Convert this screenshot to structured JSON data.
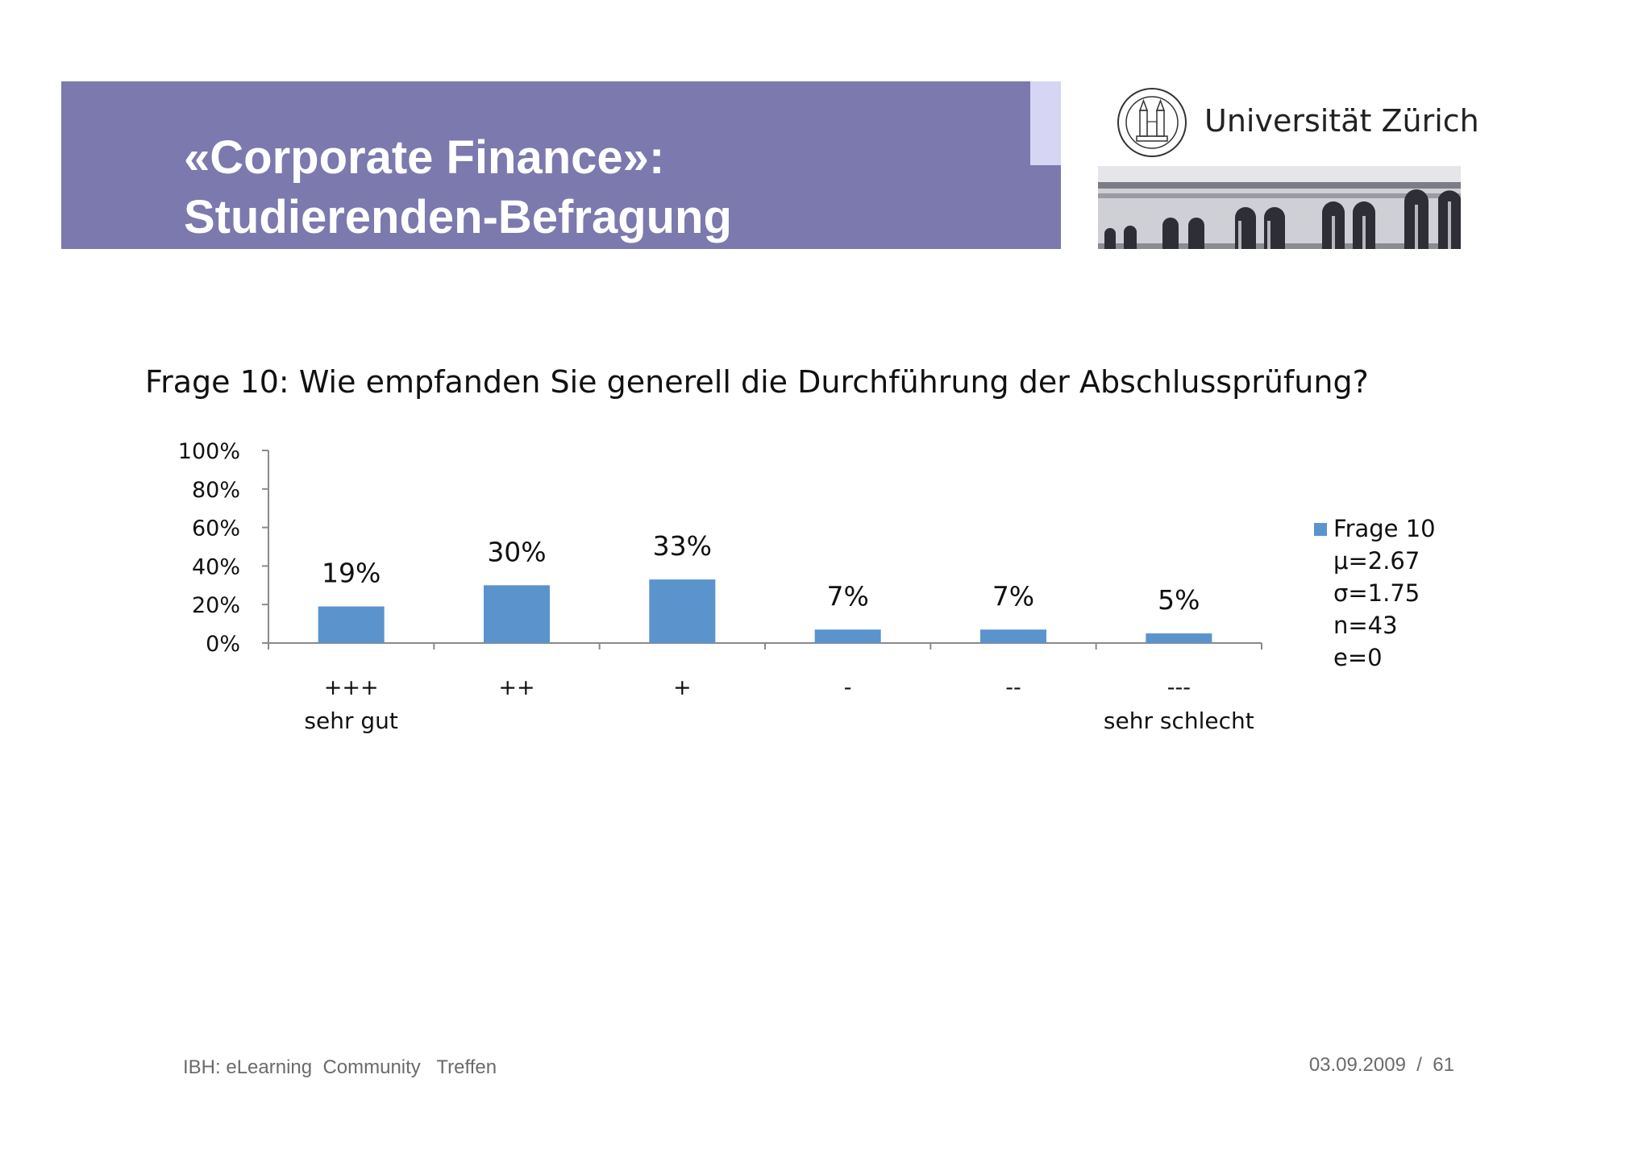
{
  "slide": {
    "title_line1": "«Corporate Finance»:",
    "title_line2": "Studierenden-Befragung",
    "university": "Universität Zürich",
    "footer_left": "IBH: eLearning  Community   Treffen",
    "footer_date": "03.09.2009",
    "footer_sep": "/",
    "footer_page": "61"
  },
  "colors": {
    "title_band": "#7b79ad",
    "bar": "#5b93cd"
  },
  "chart_data": {
    "type": "bar",
    "title": "Frage 10: Wie empfanden Sie generell die Durchführung der Abschlussprüfung?",
    "categories": [
      "+++",
      "++",
      "+",
      "-",
      "--",
      "---"
    ],
    "category_sublabels": [
      "sehr gut",
      "",
      "",
      "",
      "",
      "sehr schlecht"
    ],
    "series": [
      {
        "name": "Frage 10",
        "values": [
          19,
          30,
          33,
          7,
          7,
          5
        ]
      }
    ],
    "data_labels": [
      "19%",
      "30%",
      "33%",
      "7%",
      "7%",
      "5%"
    ],
    "y_ticks": [
      "0%",
      "20%",
      "40%",
      "60%",
      "80%",
      "100%"
    ],
    "ylim": [
      0,
      100
    ],
    "legend_position": "right",
    "stats": [
      "μ=2.67",
      "σ=1.75",
      "n=43",
      "e=0"
    ]
  }
}
